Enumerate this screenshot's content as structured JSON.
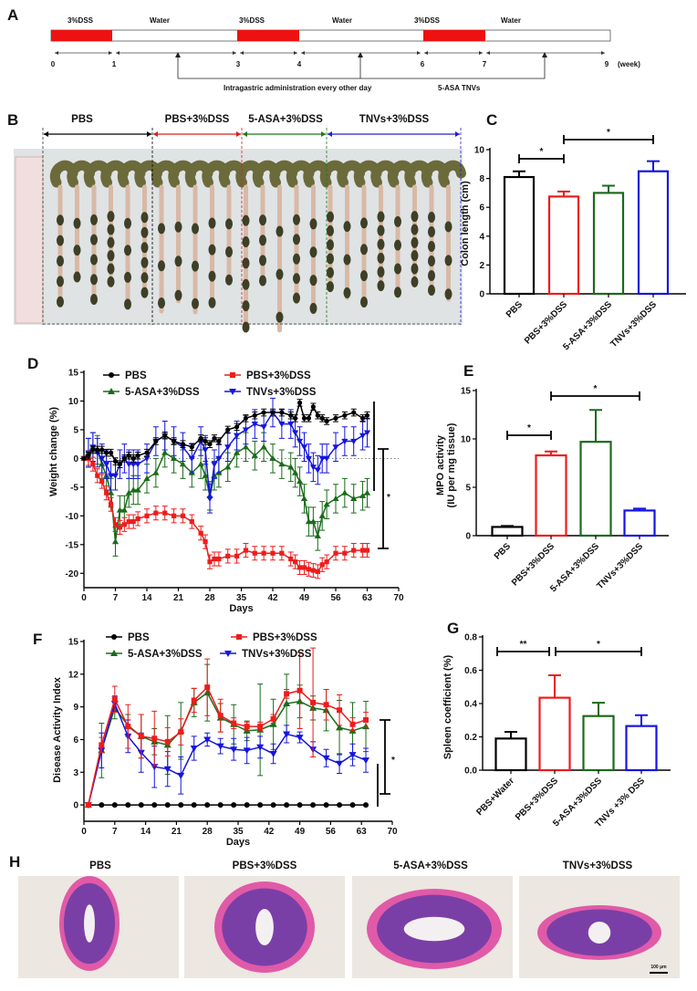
{
  "panels": {
    "A": "A",
    "B": "B",
    "C": "C",
    "D": "D",
    "E": "E",
    "F": "F",
    "G": "G",
    "H": "H"
  },
  "timeline": {
    "phases": [
      "3%DSS",
      "Water",
      "3%DSS",
      "Water",
      "3%DSS",
      "Water"
    ],
    "weeks": [
      "0",
      "1",
      "3",
      "4",
      "6",
      "7",
      "9"
    ],
    "unit": "(week)",
    "administration": "Intragastric administration every other day",
    "treatments": "5-ASA  TNVs",
    "colors": {
      "dss": "#ee1111",
      "water": "#ffffff"
    }
  },
  "photo_b": {
    "groups": [
      "PBS",
      "PBS+3%DSS",
      "5-ASA+3%DSS",
      "TNVs+3%DSS"
    ]
  },
  "histology_h": {
    "titles": [
      "PBS",
      "PBS+3%DSS",
      "5-ASA+3%DSS",
      "TNVs+3%DSS"
    ],
    "scale_bar": "100 μm"
  },
  "colors": {
    "PBS": "#000000",
    "PBS+3%DSS": "#ee1c1c",
    "5-ASA+3%DSS": "#1a6b1a",
    "TNVs+3%DSS": "#1515e0"
  },
  "chart_data": [
    {
      "id": "C",
      "type": "bar",
      "title": "",
      "xlabel": "",
      "ylabel": "Colon length (cm)",
      "categories": [
        "PBS",
        "PBS+3%DSS",
        "5-ASA+3%DSS",
        "TNVs+3%DSS"
      ],
      "values": [
        8.1,
        6.75,
        7.0,
        8.5
      ],
      "errors": [
        0.4,
        0.35,
        0.5,
        0.7
      ],
      "ylim": [
        0,
        10
      ],
      "yticks": [
        0,
        2,
        4,
        6,
        8,
        10
      ],
      "significance": [
        {
          "from": 0,
          "to": 1,
          "label": "*"
        },
        {
          "from": 1,
          "to": 3,
          "label": "*"
        }
      ]
    },
    {
      "id": "D",
      "type": "line",
      "xlabel": "Days",
      "ylabel": "Weight change (%)",
      "xlim": [
        0,
        70
      ],
      "xticks": [
        0,
        7,
        14,
        21,
        28,
        35,
        42,
        49,
        56,
        63,
        70
      ],
      "ylim": [
        -22.5,
        15
      ],
      "yticks": [
        15,
        10,
        5,
        0,
        -5,
        -10,
        -15,
        -20
      ],
      "legend": "top",
      "x": [
        0,
        1,
        2,
        3,
        4,
        5,
        6,
        7,
        8,
        9,
        10,
        11,
        12,
        14,
        16,
        18,
        20,
        22,
        24,
        26,
        27,
        28,
        29,
        30,
        32,
        34,
        36,
        38,
        40,
        42,
        44,
        46,
        47,
        48,
        49,
        50,
        51,
        52,
        53,
        54,
        56,
        58,
        60,
        62,
        63
      ],
      "series": [
        {
          "name": "PBS",
          "marker": "circle",
          "sd": 0.6,
          "values": [
            0,
            0.5,
            1.5,
            1.5,
            1.5,
            1,
            1,
            -0.5,
            -1,
            0,
            0.5,
            0,
            0.5,
            1,
            3,
            4,
            3,
            2.5,
            2,
            3.5,
            3,
            2.5,
            3.5,
            3,
            5,
            5.5,
            7,
            7.5,
            8,
            8,
            8,
            7.5,
            7,
            9.7,
            7,
            7,
            9,
            7.5,
            7,
            6.5,
            7,
            7.5,
            8,
            7,
            7.5
          ]
        },
        {
          "name": "PBS+3%DSS",
          "marker": "square",
          "sd": 1.2,
          "values": [
            0,
            0,
            -1,
            -3,
            -4,
            -6,
            -8,
            -11.5,
            -12,
            -11.5,
            -11,
            -11,
            -10.5,
            -10,
            -9.5,
            -9.5,
            -10,
            -10,
            -11,
            -13,
            -14.5,
            -18,
            -17.5,
            -17.5,
            -17,
            -17,
            -16,
            -16.5,
            -16.5,
            -16.5,
            -16.5,
            -17.5,
            -18,
            -19,
            -19,
            -19.3,
            -19.5,
            -19.7,
            -18.5,
            -18,
            -16.5,
            -16.5,
            -16,
            -16,
            -16
          ]
        },
        {
          "name": "5-ASA+3%DSS",
          "marker": "triangle-up",
          "sd": 2.5,
          "values": [
            0,
            1,
            2,
            1.5,
            -1,
            -3,
            -6,
            -14.5,
            -9,
            -9,
            -6,
            -5.5,
            -5.5,
            -3.5,
            -2.5,
            1,
            0,
            -1,
            -2.5,
            -1,
            -3,
            -6.5,
            -3,
            -2.5,
            -1.5,
            1,
            2,
            0.5,
            2,
            0,
            -1,
            -1.5,
            -2.5,
            -4,
            -7,
            -11,
            -11,
            -13.5,
            -10,
            -8,
            -7,
            -6,
            -7,
            -6.5,
            -6
          ]
        },
        {
          "name": "TNVs+3%DSS",
          "marker": "triangle-down",
          "sd": 2.5,
          "values": [
            0,
            1,
            2,
            1,
            0,
            -1,
            -3,
            -3,
            -1,
            0,
            -1,
            -1,
            -1,
            0,
            3,
            4,
            3,
            2,
            0,
            3,
            1.5,
            -7,
            -1,
            0,
            2,
            4,
            5,
            6,
            5.5,
            8,
            6,
            6,
            4.5,
            3,
            2,
            0,
            -1.5,
            -2,
            0,
            0,
            2,
            3,
            3,
            4,
            4.5
          ]
        }
      ],
      "significance": [
        {
          "label": "*"
        }
      ]
    },
    {
      "id": "E",
      "type": "bar",
      "xlabel": "",
      "ylabel": "MPO activity",
      "ylabel2": "(IU per mg tissue)",
      "categories": [
        "PBS",
        "PBS+3%DSS",
        "5-ASA+3%DSS",
        "TNVs+3%DSS"
      ],
      "values": [
        0.9,
        8.3,
        9.7,
        2.6
      ],
      "errors": [
        0.1,
        0.4,
        3.3,
        0.2
      ],
      "ylim": [
        0,
        15
      ],
      "yticks": [
        0,
        5,
        10,
        15
      ],
      "significance": [
        {
          "from": 0,
          "to": 1,
          "label": "*"
        },
        {
          "from": 1,
          "to": 3,
          "label": "*"
        }
      ]
    },
    {
      "id": "F",
      "type": "line",
      "xlabel": "Days",
      "ylabel": "Disease Activity Index",
      "xlim": [
        0,
        70
      ],
      "xticks": [
        0,
        7,
        14,
        21,
        28,
        35,
        42,
        49,
        56,
        63,
        70
      ],
      "ylim": [
        -1.5,
        15
      ],
      "yticks": [
        0,
        3,
        6,
        9,
        12,
        15
      ],
      "legend": "top",
      "x": [
        1,
        4,
        7,
        10,
        13,
        16,
        19,
        22,
        25,
        28,
        31,
        34,
        37,
        40,
        43,
        46,
        49,
        52,
        55,
        58,
        61,
        64
      ],
      "series": [
        {
          "name": "PBS",
          "marker": "circle",
          "values": [
            0,
            0,
            0,
            0,
            0,
            0,
            0,
            0,
            0,
            0,
            0,
            0,
            0,
            0,
            0,
            0,
            0,
            0,
            0,
            0,
            0,
            0
          ],
          "errors": [
            0,
            0,
            0,
            0,
            0,
            0,
            0,
            0,
            0,
            0,
            0,
            0,
            0,
            0,
            0,
            0,
            0,
            0,
            0,
            0,
            0,
            0
          ]
        },
        {
          "name": "PBS+3%DSS",
          "marker": "square",
          "values": [
            0,
            5.5,
            9.7,
            7.2,
            6.3,
            6.1,
            5.8,
            6.7,
            9.6,
            10.8,
            8.2,
            7.5,
            7.2,
            7.2,
            7.9,
            10.2,
            10.5,
            9.4,
            9.2,
            8.7,
            7.4,
            7.8
          ],
          "errors": [
            0,
            0.7,
            1.2,
            2,
            2,
            2.5,
            1.3,
            1.2,
            1.1,
            2.6,
            1.5,
            0.5,
            0.4,
            0.4,
            0.4,
            0.4,
            3.5,
            5,
            1.4,
            1.4,
            0.6,
            0.7
          ]
        },
        {
          "name": "5-ASA+3%DSS",
          "marker": "triangle-up",
          "values": [
            0,
            5,
            8.9,
            7.3,
            6.3,
            5.8,
            5.5,
            6.8,
            9.4,
            10.3,
            8,
            7.4,
            6.8,
            6.9,
            7.4,
            9.3,
            9.5,
            8.9,
            8.7,
            7.1,
            6.8,
            7.2
          ],
          "errors": [
            0,
            2.5,
            1,
            1,
            2,
            1.2,
            2.7,
            2.6,
            1.3,
            2.6,
            1.3,
            1.8,
            0.9,
            4.2,
            2.3,
            2.7,
            1.5,
            1.1,
            1.9,
            2.5,
            2.6,
            2.3
          ]
        },
        {
          "name": "TNVs+3%DSS",
          "marker": "triangle-down",
          "values": [
            0,
            5,
            9.3,
            6.3,
            4.8,
            3.5,
            3.3,
            2.7,
            5.2,
            6,
            5.4,
            5.1,
            5,
            5.3,
            4.7,
            6.5,
            6.2,
            5.1,
            4.3,
            3.8,
            4.6,
            4.1
          ],
          "errors": [
            0,
            1.6,
            0.7,
            1.5,
            1.8,
            1.9,
            1.6,
            1.7,
            1.1,
            0.6,
            0.7,
            1,
            1.2,
            1,
            0.9,
            0.8,
            0.5,
            0.7,
            0.8,
            0.9,
            1,
            1.1
          ]
        }
      ],
      "significance": [
        {
          "label": "*"
        }
      ]
    },
    {
      "id": "G",
      "type": "bar",
      "xlabel": "",
      "ylabel": "Spleen coefficient (%)",
      "categories": [
        "PBS+Water",
        "PBS+3%DSS",
        "5-ASA+3%DSS",
        "TNVs +3% DSS"
      ],
      "values": [
        0.19,
        0.435,
        0.325,
        0.265
      ],
      "errors": [
        0.04,
        0.135,
        0.08,
        0.065
      ],
      "ylim": [
        0,
        0.8
      ],
      "yticks": [
        0.0,
        0.2,
        0.4,
        0.6,
        0.8
      ],
      "significance": [
        {
          "from": 0,
          "to": 1,
          "label": "**"
        },
        {
          "from": 1,
          "to": 3,
          "label": "*"
        }
      ]
    }
  ]
}
